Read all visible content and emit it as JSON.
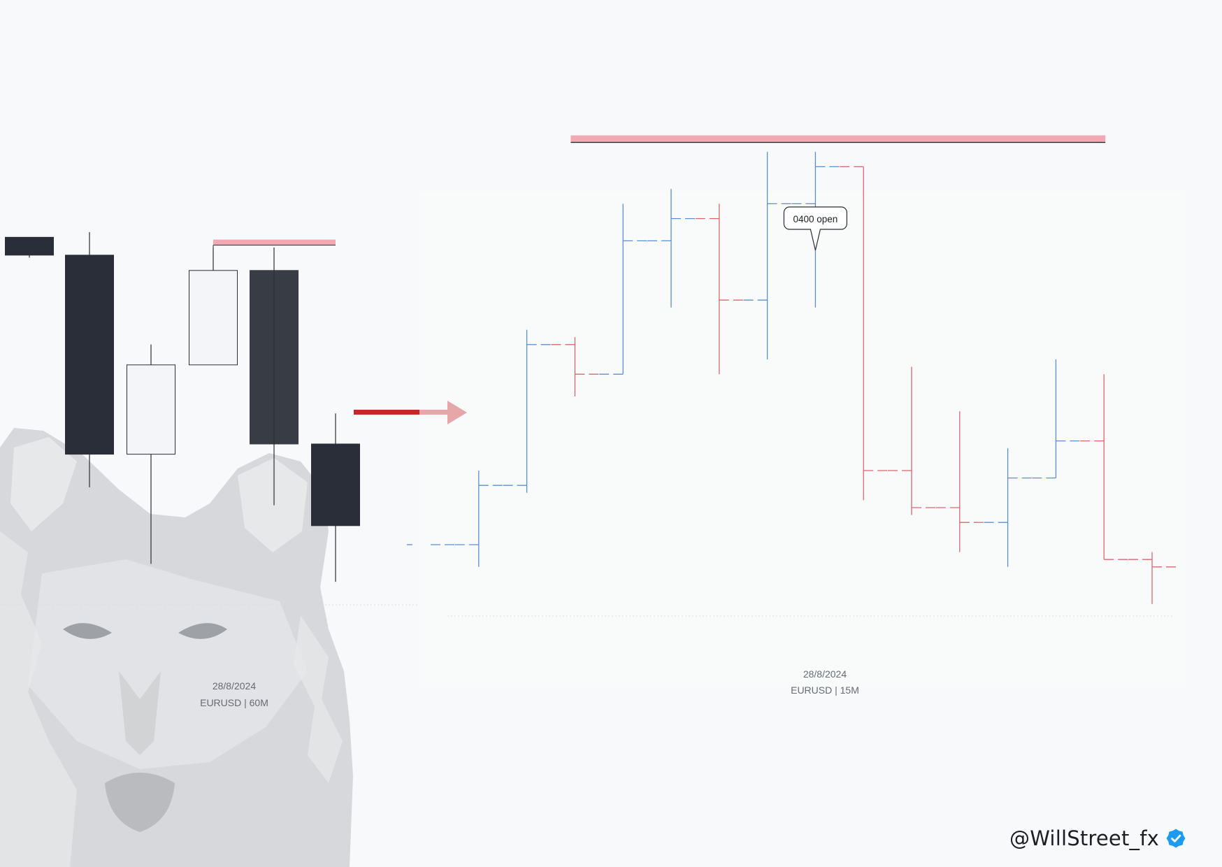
{
  "colors": {
    "background": "#f8f9fb",
    "bear_candle": "#2a2e38",
    "bull_candle": "#f3f5f8",
    "bull_bar": "#5b8fd6",
    "bear_bar": "#d9676d",
    "level_highlight": "#f2a9b3",
    "arrow": "#c62828",
    "badge": "#1d9bf0"
  },
  "watermark": "wolf-head-watermark",
  "arrow": "red-right-arrow",
  "badge_icon": "verified-badge-icon",
  "left_chart": {
    "date": "28/8/2024",
    "label": "EURUSD | 60M"
  },
  "right_chart": {
    "date": "28/8/2024",
    "label": "EURUSD | 15M",
    "callout": "0400 open"
  },
  "handle": "@WillStreet_fx",
  "chart_data": [
    {
      "type": "candlestick",
      "title": "",
      "xlabel": "28/8/2024",
      "ylabel": "",
      "ylim": [
        0,
        100
      ],
      "ohlc": [
        {
          "o": 90.5,
          "h": 90.5,
          "l": 86.5,
          "c": 87.0
        },
        {
          "o": 87.0,
          "h": 91.5,
          "l": 41.5,
          "c": 48.0
        },
        {
          "o": 48.0,
          "h": 69.5,
          "l": 26.5,
          "c": 65.5
        },
        {
          "o": 65.5,
          "h": 88.5,
          "l": 65.5,
          "c": 84.0
        },
        {
          "o": 84.0,
          "h": 88.5,
          "l": 38.0,
          "c": 50.0
        },
        {
          "o": 50.0,
          "h": 56.0,
          "l": 23.0,
          "c": 34.0
        }
      ],
      "levels": [
        {
          "value": 89.5,
          "from": 3,
          "to": 5
        }
      ],
      "grid": false,
      "legend": "none"
    },
    {
      "type": "ohlc",
      "title": "",
      "xlabel": "28/8/2024",
      "ylabel": "",
      "ylim": [
        0,
        100
      ],
      "ohlc": [
        {
          "o": 35.0,
          "h": 35.0,
          "l": 35.0,
          "c": 35.0
        },
        {
          "o": 35.0,
          "h": 45.0,
          "l": 32.0,
          "c": 43.0
        },
        {
          "o": 43.0,
          "h": 64.0,
          "l": 42.0,
          "c": 62.0
        },
        {
          "o": 62.0,
          "h": 63.0,
          "l": 55.0,
          "c": 58.0
        },
        {
          "o": 58.0,
          "h": 81.0,
          "l": 58.0,
          "c": 76.0
        },
        {
          "o": 76.0,
          "h": 83.0,
          "l": 67.0,
          "c": 79.0
        },
        {
          "o": 79.0,
          "h": 81.0,
          "l": 58.0,
          "c": 68.0
        },
        {
          "o": 68.0,
          "h": 88.0,
          "l": 60.0,
          "c": 81.0
        },
        {
          "o": 81.0,
          "h": 88.0,
          "l": 67.0,
          "c": 86.0
        },
        {
          "o": 86.0,
          "h": 86.0,
          "l": 41.0,
          "c": 45.0
        },
        {
          "o": 45.0,
          "h": 59.0,
          "l": 39.0,
          "c": 40.0
        },
        {
          "o": 40.0,
          "h": 53.0,
          "l": 34.0,
          "c": 38.0
        },
        {
          "o": 38.0,
          "h": 48.0,
          "l": 32.0,
          "c": 44.0
        },
        {
          "o": 44.0,
          "h": 60.0,
          "l": 44.0,
          "c": 49.0
        },
        {
          "o": 49.0,
          "h": 58.0,
          "l": 33.0,
          "c": 33.0
        },
        {
          "o": 33.0,
          "h": 34.0,
          "l": 27.0,
          "c": 32.0
        }
      ],
      "levels": [
        {
          "value": 89.0,
          "from": 3,
          "to": 14
        }
      ],
      "callout_bar": 8,
      "grid": false,
      "legend": "none"
    }
  ]
}
